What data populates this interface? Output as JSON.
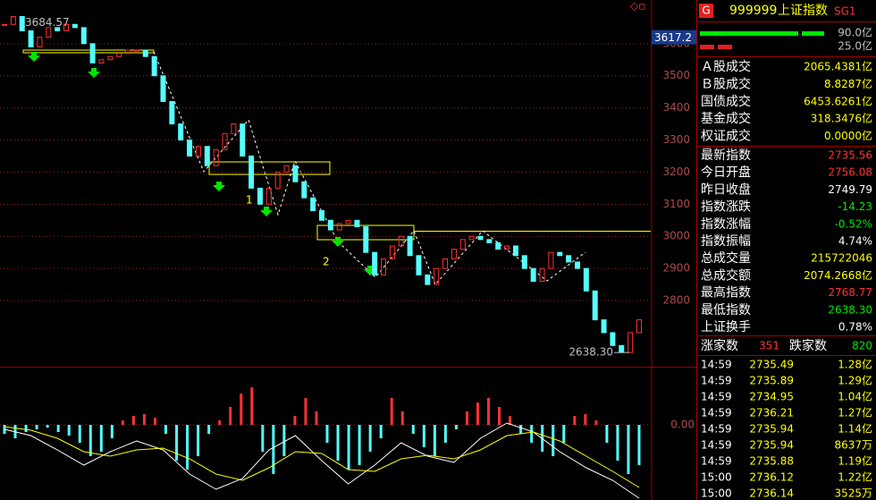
{
  "chart_data": [
    {
      "type": "candlestick",
      "up_color": "#ff3232",
      "down_color": "#54ffff",
      "grid": true,
      "ylim": [
        2594,
        3736
      ],
      "yticks": [
        2800,
        2900,
        3000,
        3100,
        3200,
        3300,
        3400,
        3500,
        3600
      ],
      "values": [
        3660,
        3684.57,
        3640,
        3590,
        3620,
        3650,
        3640,
        3660,
        3650,
        3600,
        3540,
        3550,
        3560,
        3570,
        3580,
        3580,
        3560,
        3500,
        3420,
        3350,
        3300,
        3250,
        3280,
        3220,
        3270,
        3320,
        3350,
        3250,
        3150,
        3100,
        3150,
        3200,
        3220,
        3170,
        3120,
        3080,
        3050,
        3020,
        3040,
        3050,
        3030,
        2950,
        2880,
        2930,
        2970,
        3000,
        2940,
        2880,
        2850,
        2900,
        2930,
        2960,
        2990,
        3000,
        2990,
        2980,
        2960,
        2970,
        2940,
        2900,
        2860,
        2900,
        2950,
        2940,
        2920,
        2900,
        2830,
        2740,
        2700,
        2660,
        2638.3,
        2700,
        2740
      ],
      "high_label": 3684.57,
      "low_label": {
        "value": 2638.3,
        "label": "2638.30"
      },
      "last_label": 3617.2,
      "annotations": [
        "1",
        "2"
      ]
    },
    {
      "type": "macd",
      "ylim": [
        -84,
        63
      ],
      "yticks": [
        {
          "value": 0,
          "label": "0.00"
        }
      ],
      "up_color": "#ff3232",
      "down_color": "#54ffff",
      "values": [
        -10,
        -15,
        -8,
        -5,
        -3,
        -8,
        -12,
        -20,
        -35,
        -30,
        -15,
        5,
        10,
        12,
        8,
        -10,
        -40,
        -50,
        -35,
        -10,
        5,
        20,
        35,
        42,
        -30,
        -55,
        -35,
        10,
        30,
        15,
        -20,
        -40,
        -50,
        -45,
        -30,
        -15,
        30,
        15,
        -10,
        -25,
        -35,
        -20,
        -5,
        15,
        25,
        30,
        20,
        10,
        -10,
        -20,
        -30,
        -35,
        -20,
        10,
        12,
        5,
        -20,
        -40,
        -55,
        -45
      ],
      "series": [
        {
          "color": "#ffffff",
          "values": [
            -5,
            -12,
            -28,
            -45,
            -30,
            -18,
            -28,
            -55,
            -72,
            -60,
            -28,
            -12,
            -40,
            -66,
            -45,
            -20,
            -35,
            -42,
            -15,
            2,
            -8,
            -30,
            -48,
            -62,
            -82
          ]
        },
        {
          "color": "#ffff00",
          "values": [
            -2,
            -6,
            -15,
            -30,
            -35,
            -28,
            -26,
            -38,
            -55,
            -62,
            -48,
            -30,
            -32,
            -50,
            -52,
            -38,
            -34,
            -38,
            -28,
            -12,
            -8,
            -18,
            -35,
            -52,
            -70
          ]
        }
      ]
    }
  ],
  "panel": {
    "badge": "G",
    "code": "999999",
    "name": "上证指数",
    "tag": "SG1",
    "bar_labels": [
      "90.0亿",
      "25.0亿"
    ],
    "turnover": [
      {
        "label": "Ａ股成交",
        "value": "2065.4381亿",
        "color": "#ffff00"
      },
      {
        "label": "Ｂ股成交",
        "value": "8.8287亿",
        "color": "#ffff00"
      },
      {
        "label": "国债成交",
        "value": "6453.6261亿",
        "color": "#ffff00"
      },
      {
        "label": "基金成交",
        "value": "318.3476亿",
        "color": "#ffff00"
      },
      {
        "label": "权证成交",
        "value": "0.0000亿",
        "color": "#ffff00"
      }
    ],
    "index": [
      {
        "label": "最新指数",
        "value": "2735.56",
        "color": "#ff3232"
      },
      {
        "label": "今日开盘",
        "value": "2756.08",
        "color": "#ff3232"
      },
      {
        "label": "昨日收盘",
        "value": "2749.79",
        "color": "#ffffff"
      },
      {
        "label": "指数涨跌",
        "value": "-14.23",
        "color": "#00e600"
      },
      {
        "label": "指数涨幅",
        "value": "-0.52%",
        "color": "#00e600"
      },
      {
        "label": "指数振幅",
        "value": "4.74%",
        "color": "#ffffff"
      },
      {
        "label": "总成交量",
        "value": "215722046",
        "color": "#ffff00"
      },
      {
        "label": "总成交额",
        "value": "2074.2668亿",
        "color": "#ffff00"
      },
      {
        "label": "最高指数",
        "value": "2768.77",
        "color": "#ff3232"
      },
      {
        "label": "最低指数",
        "value": "2638.30",
        "color": "#00e600"
      },
      {
        "label": "上证换手",
        "value": "0.78%",
        "color": "#ffffff"
      }
    ],
    "breadth": {
      "up_label": "涨家数",
      "up": 351,
      "down_label": "跌家数",
      "down": 820
    },
    "ticks": [
      [
        "14:59",
        "2735.49",
        "1.28亿"
      ],
      [
        "14:59",
        "2735.89",
        "1.29亿"
      ],
      [
        "14:59",
        "2734.95",
        "1.04亿"
      ],
      [
        "14:59",
        "2736.21",
        "1.27亿"
      ],
      [
        "14:59",
        "2735.94",
        "1.14亿"
      ],
      [
        "14:59",
        "2735.94",
        "8637万"
      ],
      [
        "14:59",
        "2735.88",
        "1.19亿"
      ],
      [
        "15:00",
        "2736.12",
        "1.22亿"
      ],
      [
        "15:00",
        "2736.14",
        "3525万"
      ]
    ]
  }
}
